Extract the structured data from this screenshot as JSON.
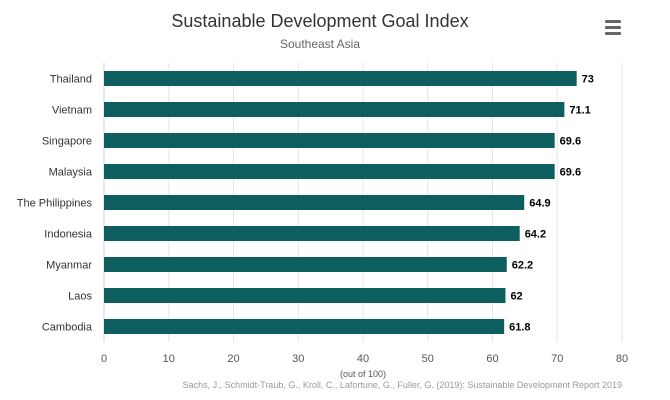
{
  "chart_data": {
    "type": "bar",
    "orientation": "horizontal",
    "title": "Sustainable Development Goal Index",
    "subtitle": "Southeast Asia",
    "categories": [
      "Thailand",
      "Vietnam",
      "Singapore",
      "Malaysia",
      "The Philippines",
      "Indonesia",
      "Myanmar",
      "Laos",
      "Cambodia"
    ],
    "values": [
      73,
      71.1,
      69.6,
      69.6,
      64.9,
      64.2,
      62.2,
      62,
      61.8
    ],
    "value_labels": [
      "73",
      "71.1",
      "69.6",
      "69.6",
      "64.9",
      "64.2",
      "62.2",
      "62",
      "61.8"
    ],
    "xlabel": "(out of 100)",
    "ylabel": "",
    "xlim": [
      0,
      80
    ],
    "ticks": [
      0,
      10,
      20,
      30,
      40,
      50,
      60,
      70,
      80
    ],
    "grid": true,
    "legend": "none",
    "bar_color": "#0d5e5e",
    "credits": "Sachs, J., Schmidt-Traub, G., Kroll, C., Lafortune, G., Fuller, G. (2019): Sustainable Development Report 2019"
  },
  "menu": {
    "icon": "hamburger-menu-icon"
  }
}
